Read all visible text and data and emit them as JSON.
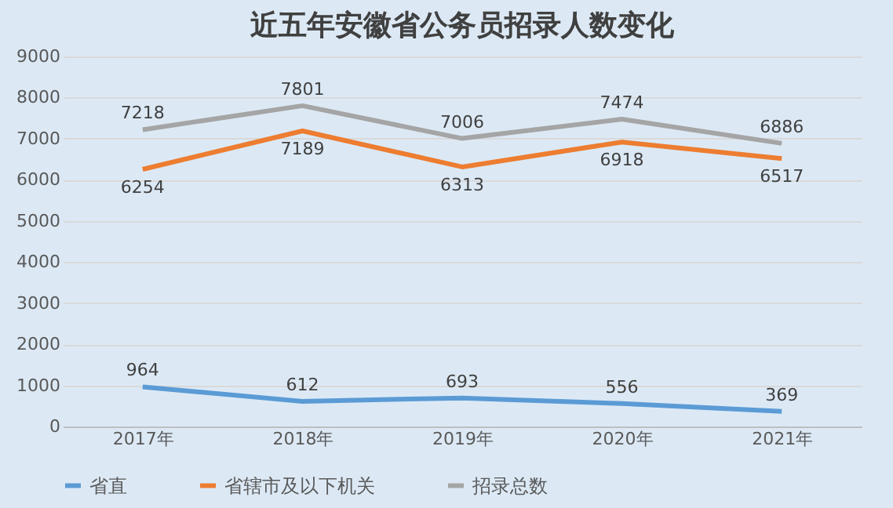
{
  "chart_data": {
    "type": "line",
    "title": "近五年安徽省公务员招录人数变化",
    "categories": [
      "2017年",
      "2018年",
      "2019年",
      "2020年",
      "2021年"
    ],
    "series": [
      {
        "name": "省直",
        "color": "#5b9bd5",
        "values": [
          964,
          612,
          693,
          556,
          369
        ]
      },
      {
        "name": "省辖市及以下机关",
        "color": "#ed7d31",
        "values": [
          6254,
          7189,
          6313,
          6918,
          6517
        ]
      },
      {
        "name": "招录总数",
        "color": "#a5a5a5",
        "values": [
          7218,
          7801,
          7006,
          7474,
          6886
        ]
      }
    ],
    "ylim": [
      0,
      9000
    ],
    "yticks": [
      0,
      1000,
      2000,
      3000,
      4000,
      5000,
      6000,
      7000,
      8000,
      9000
    ],
    "grid": "y",
    "legend": "bottom",
    "data_labels": true,
    "marker": "none",
    "line_style": "solid"
  }
}
